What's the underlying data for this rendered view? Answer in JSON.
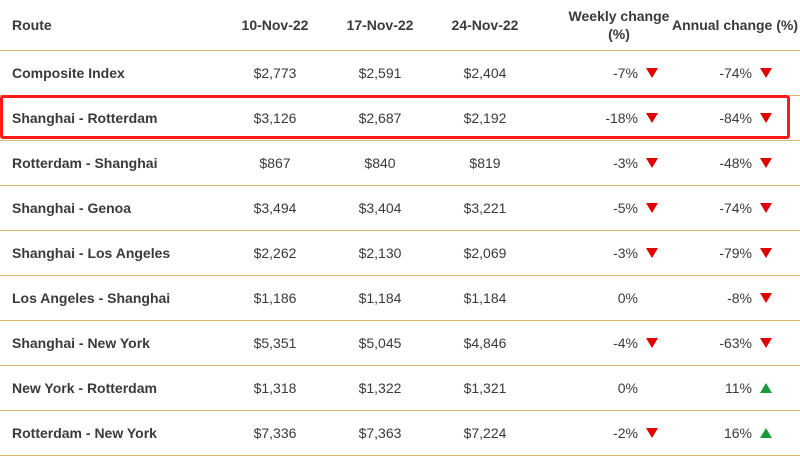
{
  "header": {
    "route": "Route",
    "date1": "10-Nov-22",
    "date2": "17-Nov-22",
    "date3": "24-Nov-22",
    "weekly": "Weekly change (%)",
    "annual": "Annual change (%)"
  },
  "rows": [
    {
      "route": "Composite Index",
      "d1": "$2,773",
      "d2": "$2,591",
      "d3": "$2,404",
      "weekly": "-7%",
      "weekly_dir": "down",
      "annual": "-74%",
      "annual_dir": "down"
    },
    {
      "route": "Shanghai - Rotterdam",
      "d1": "$3,126",
      "d2": "$2,687",
      "d3": "$2,192",
      "weekly": "-18%",
      "weekly_dir": "down",
      "annual": "-84%",
      "annual_dir": "down"
    },
    {
      "route": "Rotterdam - Shanghai",
      "d1": "$867",
      "d2": "$840",
      "d3": "$819",
      "weekly": "-3%",
      "weekly_dir": "down",
      "annual": "-48%",
      "annual_dir": "down"
    },
    {
      "route": "Shanghai - Genoa",
      "d1": "$3,494",
      "d2": "$3,404",
      "d3": "$3,221",
      "weekly": "-5%",
      "weekly_dir": "down",
      "annual": "-74%",
      "annual_dir": "down"
    },
    {
      "route": "Shanghai - Los Angeles",
      "d1": "$2,262",
      "d2": "$2,130",
      "d3": "$2,069",
      "weekly": "-3%",
      "weekly_dir": "down",
      "annual": "-79%",
      "annual_dir": "down"
    },
    {
      "route": "Los Angeles - Shanghai",
      "d1": "$1,186",
      "d2": "$1,184",
      "d3": "$1,184",
      "weekly": "0%",
      "weekly_dir": "none",
      "annual": "-8%",
      "annual_dir": "down"
    },
    {
      "route": "Shanghai - New York",
      "d1": "$5,351",
      "d2": "$5,045",
      "d3": "$4,846",
      "weekly": "-4%",
      "weekly_dir": "down",
      "annual": "-63%",
      "annual_dir": "down"
    },
    {
      "route": "New York - Rotterdam",
      "d1": "$1,318",
      "d2": "$1,322",
      "d3": "$1,321",
      "weekly": "0%",
      "weekly_dir": "none",
      "annual": "11%",
      "annual_dir": "up"
    },
    {
      "route": "Rotterdam - New York",
      "d1": "$7,336",
      "d2": "$7,363",
      "d3": "$7,224",
      "weekly": "-2%",
      "weekly_dir": "down",
      "annual": "16%",
      "annual_dir": "up"
    }
  ],
  "highlighted_route": "Shanghai - Rotterdam",
  "colors": {
    "down": "#e00000",
    "up": "#1a9a3c",
    "highlight": "#ff1a1a",
    "rule": "#d9b86a"
  }
}
